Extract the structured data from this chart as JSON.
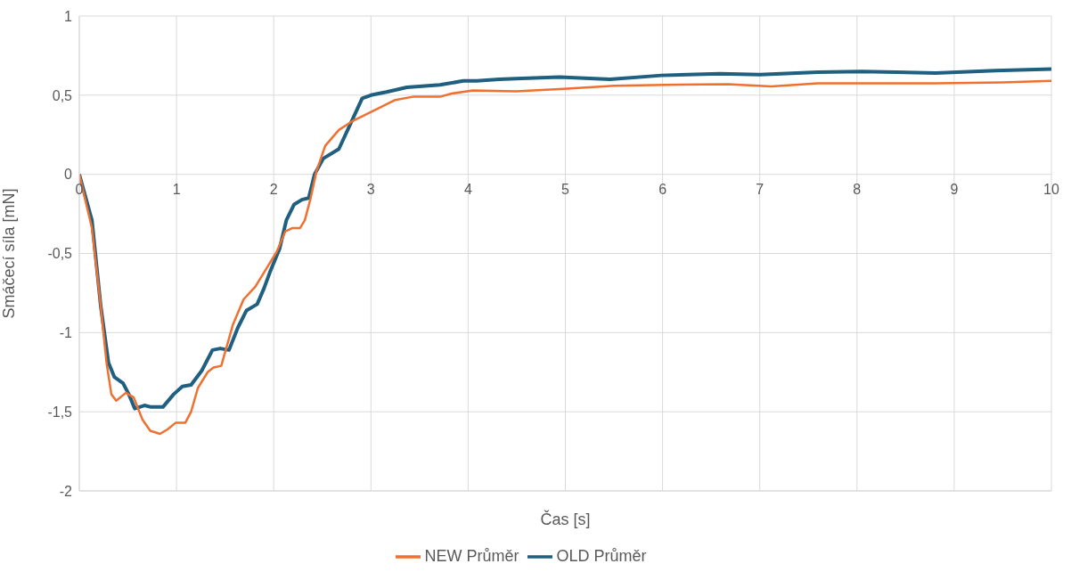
{
  "chart_data": {
    "type": "line",
    "xlabel": "Čas [s]",
    "ylabel": "Smáčecí síla [mN]",
    "xlim": [
      0,
      10
    ],
    "xticks": [
      0,
      1,
      2,
      3,
      4,
      5,
      6,
      7,
      8,
      9,
      10
    ],
    "ylim": [
      -2,
      1
    ],
    "yticks": [
      {
        "value": -2,
        "label": "-2"
      },
      {
        "value": -1.5,
        "label": "-1,5"
      },
      {
        "value": -1,
        "label": "-1"
      },
      {
        "value": -0.5,
        "label": "-0,5"
      },
      {
        "value": 0,
        "label": "0"
      },
      {
        "value": 0.5,
        "label": "0,5"
      },
      {
        "value": 1,
        "label": "1"
      }
    ],
    "grid": true,
    "legend": "bottom",
    "marker": "none",
    "line_style": "solid",
    "series": [
      {
        "name": "OLD Průměr",
        "color": "#1f5f80",
        "x": [
          0,
          0.13,
          0.22,
          0.3,
          0.36,
          0.45,
          0.51,
          0.57,
          0.67,
          0.74,
          0.86,
          0.97,
          1.06,
          1.15,
          1.26,
          1.37,
          1.45,
          1.54,
          1.63,
          1.72,
          1.83,
          1.9,
          1.96,
          2.06,
          2.13,
          2.21,
          2.29,
          2.36,
          2.42,
          2.51,
          2.67,
          2.79,
          2.91,
          3,
          3.16,
          3.37,
          3.71,
          3.95,
          4.09,
          4.32,
          4.49,
          4.94,
          5.46,
          5.99,
          6.59,
          7,
          7.6,
          8.05,
          8.81,
          9.42,
          10
        ],
        "values": [
          0,
          -0.29,
          -0.83,
          -1.19,
          -1.28,
          -1.32,
          -1.39,
          -1.48,
          -1.46,
          -1.47,
          -1.47,
          -1.39,
          -1.34,
          -1.33,
          -1.24,
          -1.11,
          -1.1,
          -1.11,
          -0.97,
          -0.86,
          -0.82,
          -0.72,
          -0.62,
          -0.47,
          -0.29,
          -0.19,
          -0.16,
          -0.15,
          0,
          0.1,
          0.16,
          0.32,
          0.48,
          0.5,
          0.52,
          0.55,
          0.565,
          0.59,
          0.59,
          0.6,
          0.605,
          0.615,
          0.6,
          0.625,
          0.635,
          0.63,
          0.645,
          0.65,
          0.64,
          0.655,
          0.665
        ]
      },
      {
        "name": "NEW Průměr",
        "color": "#f07030",
        "x": [
          0,
          0.13,
          0.22,
          0.28,
          0.33,
          0.38,
          0.48,
          0.56,
          0.65,
          0.73,
          0.83,
          0.91,
          0.99,
          1.09,
          1.15,
          1.22,
          1.32,
          1.38,
          1.46,
          1.52,
          1.58,
          1.69,
          1.81,
          1.9,
          2.03,
          2.12,
          2.19,
          2.27,
          2.32,
          2.38,
          2.44,
          2.53,
          2.67,
          2.82,
          3.02,
          3.25,
          3.43,
          3.71,
          3.83,
          4.05,
          4.49,
          4.98,
          5.5,
          6.03,
          6.67,
          7.12,
          7.6,
          8.13,
          8.81,
          9.5,
          10
        ],
        "values": [
          0,
          -0.34,
          -0.83,
          -1.19,
          -1.39,
          -1.43,
          -1.38,
          -1.41,
          -1.55,
          -1.62,
          -1.64,
          -1.61,
          -1.57,
          -1.57,
          -1.5,
          -1.35,
          -1.25,
          -1.22,
          -1.21,
          -1.08,
          -0.95,
          -0.79,
          -0.71,
          -0.62,
          -0.49,
          -0.36,
          -0.34,
          -0.34,
          -0.29,
          -0.15,
          0.02,
          0.18,
          0.28,
          0.34,
          0.4,
          0.47,
          0.49,
          0.49,
          0.51,
          0.53,
          0.525,
          0.54,
          0.56,
          0.565,
          0.57,
          0.555,
          0.575,
          0.575,
          0.575,
          0.58,
          0.59
        ]
      }
    ]
  }
}
